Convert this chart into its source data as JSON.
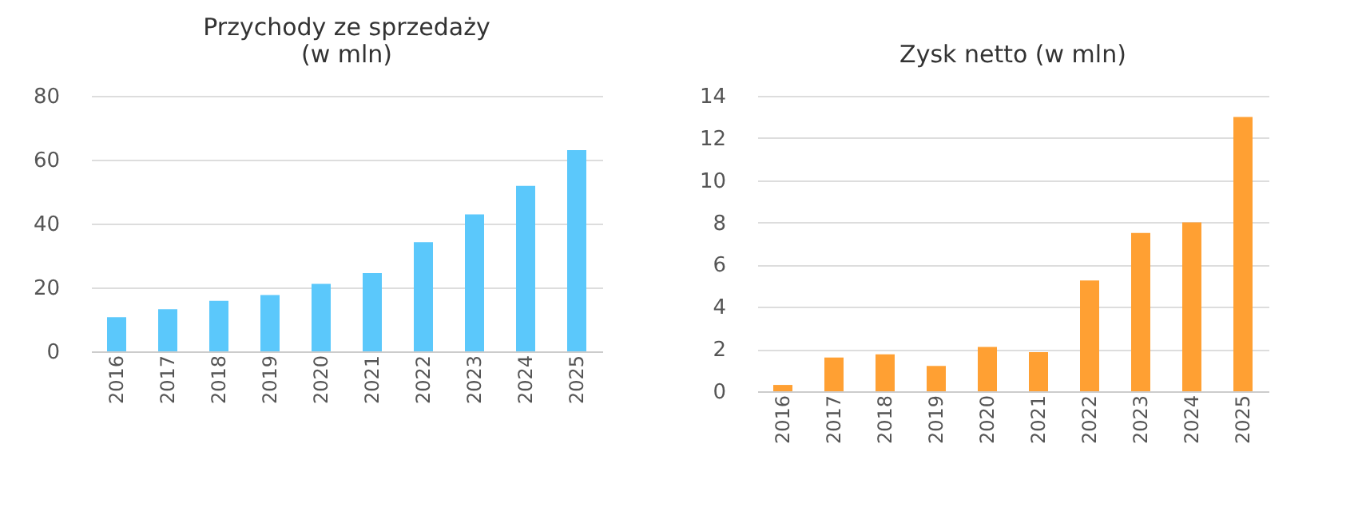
{
  "chart_data": [
    {
      "type": "bar",
      "title": "Przychody ze sprzedaży\n(w mln)",
      "categories": [
        "2016",
        "2017",
        "2018",
        "2019",
        "2020",
        "2021",
        "2022",
        "2023",
        "2024",
        "2025"
      ],
      "color": "#5bc8fb",
      "values": [
        10.7,
        13.2,
        15.8,
        17.6,
        21.1,
        24.5,
        34.2,
        42.9,
        51.8,
        63.0
      ],
      "ylim": [
        0,
        80
      ],
      "yticks": [
        0,
        20,
        40,
        60,
        80
      ],
      "grid": "y"
    },
    {
      "type": "bar",
      "title": "Zysk netto (w mln)",
      "categories": [
        "2016",
        "2017",
        "2018",
        "2019",
        "2020",
        "2021",
        "2022",
        "2023",
        "2024",
        "2025"
      ],
      "color": "#ffa033",
      "values": [
        0.3,
        1.6,
        1.75,
        1.2,
        2.1,
        1.85,
        5.25,
        7.5,
        8.0,
        13.0
      ],
      "ylim": [
        0,
        14
      ],
      "yticks": [
        0,
        2,
        4,
        6,
        8,
        10,
        12,
        14
      ],
      "grid": "y"
    }
  ]
}
